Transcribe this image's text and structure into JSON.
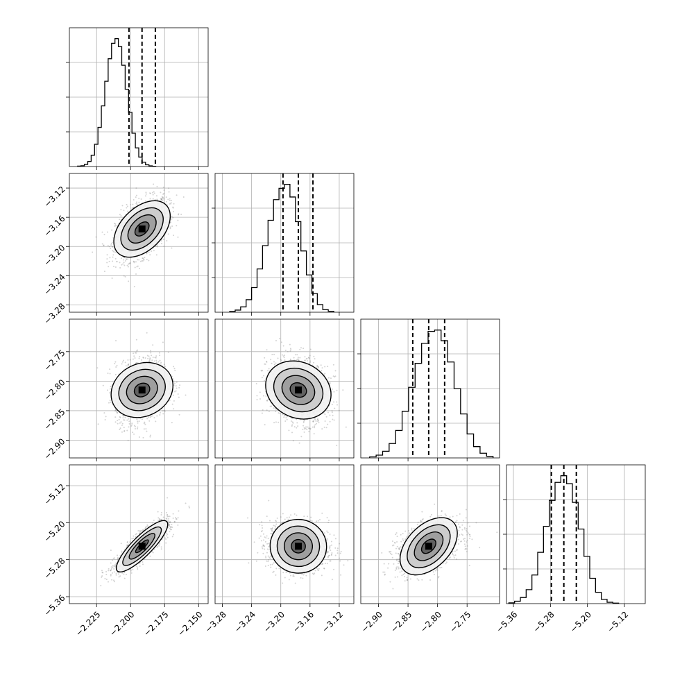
{
  "chart_data": {
    "type": "corner",
    "grid": true,
    "colors": {
      "line": "#000000",
      "scatter": "#808080",
      "grid": "#b0b0b0"
    },
    "parameters": [
      {
        "index": 0,
        "range": [
          -2.245,
          -2.143
        ],
        "ticks": [
          -2.225,
          -2.2,
          -2.175,
          -2.15
        ],
        "tick_labels": [
          "−2.225",
          "−2.200",
          "−2.175",
          "−2.150"
        ],
        "quantiles": [
          -2.2012,
          -2.1916,
          -2.1818
        ],
        "histogram": {
          "start": -2.239,
          "width": 0.0025,
          "counts": [
            0.3,
            0.6,
            1.6,
            3.8,
            8.5,
            16.7,
            29.4,
            45.5,
            64.0,
            80.9,
            92.5,
            96.0,
            90.0,
            76.0,
            58.0,
            40.7,
            25.0,
            14.0,
            7.1,
            3.2,
            1.3,
            0.5,
            0.2
          ],
          "max": 100
        }
      },
      {
        "index": 1,
        "range": [
          -3.29,
          -3.1
        ],
        "ticks": [
          -3.28,
          -3.24,
          -3.2,
          -3.16,
          -3.12
        ],
        "tick_labels": [
          "−3.28",
          "−3.24",
          "−3.20",
          "−3.16",
          "−3.12"
        ],
        "quantiles": [
          -3.197,
          -3.176,
          -3.156
        ],
        "histogram": {
          "start": -3.27,
          "width": 0.0075,
          "counts": [
            0.6,
            1.6,
            4.0,
            9.4,
            18.5,
            32.5,
            50.0,
            69.0,
            84.5,
            93.0,
            96.0,
            86.5,
            68.0,
            46.0,
            28.0,
            14.0,
            5.7,
            1.9,
            0.7
          ],
          "max": 100
        }
      },
      {
        "index": 2,
        "range": [
          -2.93,
          -2.695
        ],
        "ticks": [
          -2.9,
          -2.85,
          -2.8,
          -2.75
        ],
        "tick_labels": [
          "−2.90",
          "−2.85",
          "−2.80",
          "−2.75"
        ],
        "quantiles": [
          -2.842,
          -2.815,
          -2.788
        ],
        "histogram": {
          "start": -2.915,
          "width": 0.011,
          "counts": [
            0.8,
            2.1,
            5.0,
            10.8,
            20.6,
            35.0,
            53.0,
            71.0,
            86.0,
            95.0,
            96.0,
            88.0,
            72.0,
            52.0,
            33.0,
            18.0,
            8.5,
            3.5,
            1.2
          ],
          "max": 100
        }
      },
      {
        "index": 3,
        "range": [
          -5.375,
          -5.075
        ],
        "ticks": [
          -5.36,
          -5.28,
          -5.2,
          -5.12
        ],
        "tick_labels": [
          "−5.36",
          "−5.28",
          "−5.20",
          "−5.12"
        ],
        "quantiles": [
          -5.278,
          -5.251,
          -5.224
        ],
        "histogram": {
          "start": -5.37,
          "width": 0.0125,
          "counts": [
            0.6,
            1.8,
            4.6,
            10.5,
            21.5,
            38.5,
            58.0,
            77.5,
            91.0,
            96.0,
            90.0,
            76.0,
            56.0,
            35.5,
            19.0,
            8.5,
            3.2,
            1.0,
            0.4
          ],
          "max": 100
        }
      }
    ],
    "correlations": [
      [
        1.0,
        0.45,
        0.2,
        0.85
      ],
      [
        0.45,
        1.0,
        -0.2,
        -0.05
      ],
      [
        0.2,
        -0.2,
        1.0,
        0.45
      ],
      [
        0.85,
        -0.05,
        0.45,
        1.0
      ]
    ],
    "contour_levels_sigma": [
      0.5,
      1.0,
      1.5,
      2.0
    ],
    "scatter_points_per_panel": 1500
  }
}
